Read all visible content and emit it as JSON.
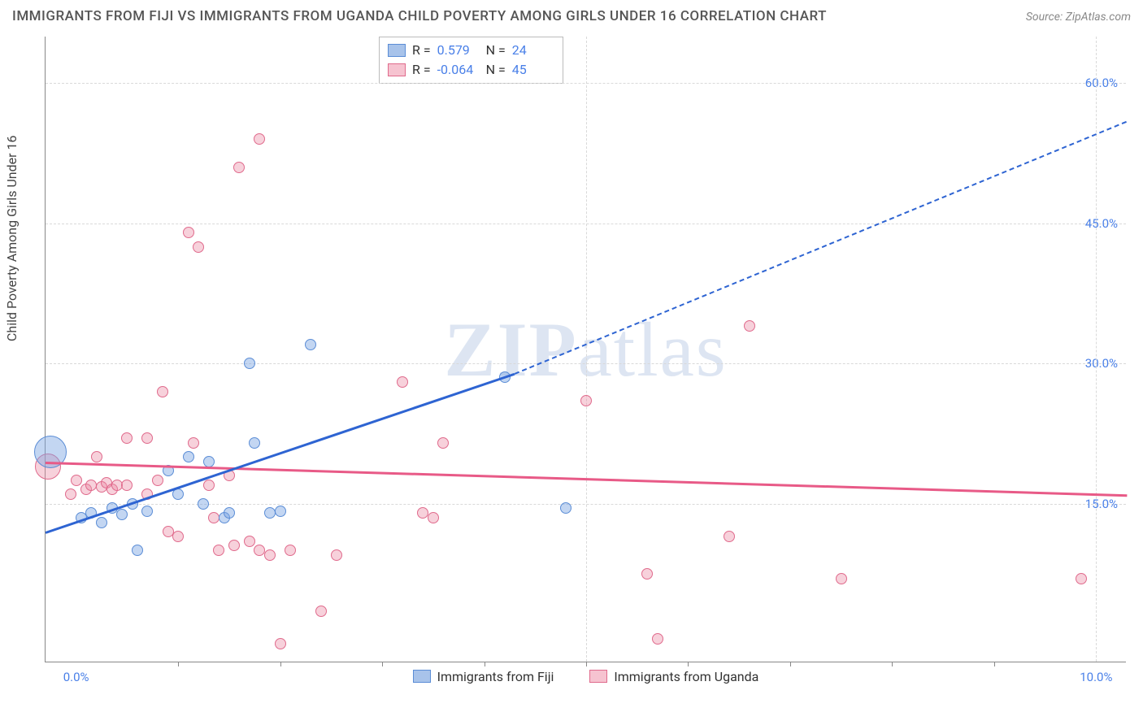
{
  "title": "IMMIGRANTS FROM FIJI VS IMMIGRANTS FROM UGANDA CHILD POVERTY AMONG GIRLS UNDER 16 CORRELATION CHART",
  "source_label": "Source: ",
  "source_name": "ZipAtlas.com",
  "ylabel": "Child Poverty Among Girls Under 16",
  "watermark_bold": "ZIP",
  "watermark_rest": "atlas",
  "chart": {
    "type": "scatter",
    "background_color": "#ffffff",
    "grid_color": "#d9d9d9",
    "axis_color": "#888888",
    "tick_label_color": "#4a80e8",
    "xlim": [
      -0.3,
      10.3
    ],
    "ylim": [
      -2,
      65
    ],
    "yticks": [
      15.0,
      30.0,
      45.0,
      60.0
    ],
    "ytick_labels": [
      "15.0%",
      "30.0%",
      "45.0%",
      "60.0%"
    ],
    "xticks": [
      0.0,
      10.0
    ],
    "xtick_labels": [
      "0.0%",
      "10.0%"
    ],
    "xtick_minor": [
      1.0,
      2.0,
      3.0,
      4.0,
      5.0,
      6.0,
      7.0,
      8.0,
      9.0
    ],
    "xgrid_at": [
      5.0,
      10.0
    ]
  },
  "series": {
    "fiji": {
      "label": "Immigrants from Fiji",
      "color_fill": "rgba(121, 163, 226, 0.45)",
      "color_stroke": "#5b8dd6",
      "swatch_fill": "#a8c3ea",
      "swatch_stroke": "#5b8dd6",
      "trend_color": "#2e64d2",
      "r_label": "R =",
      "r_value": "0.579",
      "n_label": "N =",
      "n_value": "24",
      "points": [
        {
          "x": -0.25,
          "y": 20.5,
          "r": 20
        },
        {
          "x": 0.05,
          "y": 13.5,
          "r": 7
        },
        {
          "x": 0.15,
          "y": 14.0,
          "r": 7
        },
        {
          "x": 0.25,
          "y": 13.0,
          "r": 7
        },
        {
          "x": 0.35,
          "y": 14.5,
          "r": 7
        },
        {
          "x": 0.45,
          "y": 13.8,
          "r": 7
        },
        {
          "x": 0.55,
          "y": 15.0,
          "r": 7
        },
        {
          "x": 0.6,
          "y": 10.0,
          "r": 7
        },
        {
          "x": 0.7,
          "y": 14.2,
          "r": 7
        },
        {
          "x": 0.9,
          "y": 18.5,
          "r": 7
        },
        {
          "x": 1.0,
          "y": 16.0,
          "r": 7
        },
        {
          "x": 1.1,
          "y": 20.0,
          "r": 7
        },
        {
          "x": 1.25,
          "y": 15.0,
          "r": 7
        },
        {
          "x": 1.3,
          "y": 19.5,
          "r": 7
        },
        {
          "x": 1.45,
          "y": 13.5,
          "r": 7
        },
        {
          "x": 1.5,
          "y": 14.0,
          "r": 7
        },
        {
          "x": 1.7,
          "y": 30.0,
          "r": 7
        },
        {
          "x": 1.75,
          "y": 21.5,
          "r": 7
        },
        {
          "x": 1.9,
          "y": 14.0,
          "r": 7
        },
        {
          "x": 2.0,
          "y": 14.2,
          "r": 7
        },
        {
          "x": 2.3,
          "y": 32.0,
          "r": 7
        },
        {
          "x": 4.2,
          "y": 28.5,
          "r": 7
        },
        {
          "x": 4.8,
          "y": 14.5,
          "r": 7
        }
      ],
      "trend_line": {
        "x1": -0.3,
        "y1": 12.0,
        "x2": 4.3,
        "y2": 29.0
      },
      "trend_dashed": {
        "x1": 4.3,
        "y1": 29.0,
        "x2": 10.3,
        "y2": 56.0
      }
    },
    "uganda": {
      "label": "Immigrants from Uganda",
      "color_fill": "rgba(236, 140, 165, 0.4)",
      "color_stroke": "#e06a8c",
      "swatch_fill": "#f6c3d0",
      "swatch_stroke": "#e06a8c",
      "trend_color": "#e85a87",
      "r_label": "R =",
      "r_value": "-0.064",
      "n_label": "N =",
      "n_value": "45",
      "points": [
        {
          "x": -0.28,
          "y": 19.0,
          "r": 16
        },
        {
          "x": -0.05,
          "y": 16.0,
          "r": 7
        },
        {
          "x": 0.0,
          "y": 17.5,
          "r": 7
        },
        {
          "x": 0.1,
          "y": 16.5,
          "r": 7
        },
        {
          "x": 0.15,
          "y": 17.0,
          "r": 7
        },
        {
          "x": 0.2,
          "y": 20.0,
          "r": 7
        },
        {
          "x": 0.25,
          "y": 16.8,
          "r": 7
        },
        {
          "x": 0.3,
          "y": 17.2,
          "r": 7
        },
        {
          "x": 0.35,
          "y": 16.5,
          "r": 7
        },
        {
          "x": 0.4,
          "y": 17.0,
          "r": 7
        },
        {
          "x": 0.5,
          "y": 22.0,
          "r": 7
        },
        {
          "x": 0.5,
          "y": 17.0,
          "r": 7
        },
        {
          "x": 0.7,
          "y": 16.0,
          "r": 7
        },
        {
          "x": 0.7,
          "y": 22.0,
          "r": 7
        },
        {
          "x": 0.8,
          "y": 17.5,
          "r": 7
        },
        {
          "x": 0.85,
          "y": 27.0,
          "r": 7
        },
        {
          "x": 0.9,
          "y": 12.0,
          "r": 7
        },
        {
          "x": 1.0,
          "y": 11.5,
          "r": 7
        },
        {
          "x": 1.1,
          "y": 44.0,
          "r": 7
        },
        {
          "x": 1.15,
          "y": 21.5,
          "r": 7
        },
        {
          "x": 1.2,
          "y": 42.5,
          "r": 7
        },
        {
          "x": 1.3,
          "y": 17.0,
          "r": 7
        },
        {
          "x": 1.35,
          "y": 13.5,
          "r": 7
        },
        {
          "x": 1.4,
          "y": 10.0,
          "r": 7
        },
        {
          "x": 1.5,
          "y": 18.0,
          "r": 7
        },
        {
          "x": 1.55,
          "y": 10.5,
          "r": 7
        },
        {
          "x": 1.6,
          "y": 51.0,
          "r": 7
        },
        {
          "x": 1.7,
          "y": 11.0,
          "r": 7
        },
        {
          "x": 1.8,
          "y": 10.0,
          "r": 7
        },
        {
          "x": 1.8,
          "y": 54.0,
          "r": 7
        },
        {
          "x": 1.9,
          "y": 9.5,
          "r": 7
        },
        {
          "x": 2.0,
          "y": 0.0,
          "r": 7
        },
        {
          "x": 2.1,
          "y": 10.0,
          "r": 7
        },
        {
          "x": 2.4,
          "y": 3.5,
          "r": 7
        },
        {
          "x": 2.55,
          "y": 9.5,
          "r": 7
        },
        {
          "x": 3.2,
          "y": 28.0,
          "r": 7
        },
        {
          "x": 3.4,
          "y": 14.0,
          "r": 7
        },
        {
          "x": 3.5,
          "y": 13.5,
          "r": 7
        },
        {
          "x": 3.6,
          "y": 21.5,
          "r": 7
        },
        {
          "x": 5.0,
          "y": 26.0,
          "r": 7
        },
        {
          "x": 5.6,
          "y": 7.5,
          "r": 7
        },
        {
          "x": 5.7,
          "y": 0.5,
          "r": 7
        },
        {
          "x": 6.4,
          "y": 11.5,
          "r": 7
        },
        {
          "x": 6.6,
          "y": 34.0,
          "r": 7
        },
        {
          "x": 7.5,
          "y": 7.0,
          "r": 7
        },
        {
          "x": 9.85,
          "y": 7.0,
          "r": 7
        }
      ],
      "trend_line": {
        "x1": -0.3,
        "y1": 19.5,
        "x2": 10.3,
        "y2": 16.0
      }
    }
  }
}
